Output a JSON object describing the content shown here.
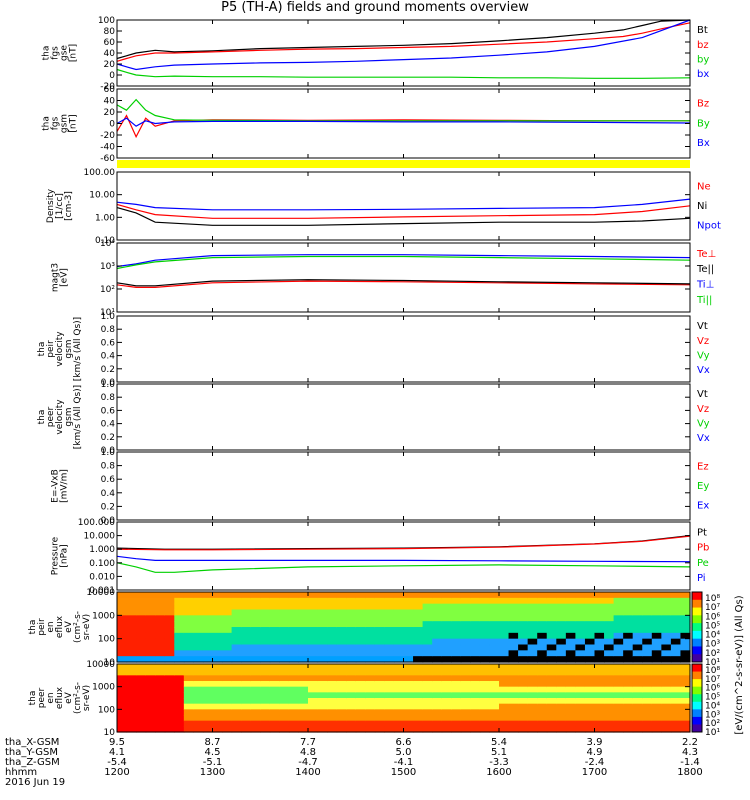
{
  "title": "P5 (TH-A) fields and ground moments overview",
  "colors": {
    "black": "#000000",
    "red": "#ff0000",
    "green": "#00d000",
    "blue": "#0000ff",
    "yellow": "#ffff00"
  },
  "chart_data": [
    {
      "id": "fgs_gse",
      "type": "line",
      "ylabel": [
        "tha",
        "fgs",
        "gse",
        "[nT]"
      ],
      "ytick_labels": [
        "100",
        "80",
        "60",
        "40",
        "20",
        "0",
        "-20"
      ],
      "ylim": [
        -20,
        100
      ],
      "series": [
        {
          "name": "Bt",
          "color": "#000000",
          "x": [
            1200,
            1210,
            1220,
            1240,
            1260,
            1300,
            1350,
            1400,
            1450,
            1500,
            1550,
            1600,
            1650,
            1700,
            1730,
            1750,
            1770,
            1800
          ],
          "values": [
            30,
            35,
            40,
            45,
            42,
            44,
            48,
            50,
            52,
            54,
            57,
            62,
            68,
            76,
            82,
            90,
            98,
            105
          ]
        },
        {
          "name": "bz",
          "color": "#ff0000",
          "x": [
            1200,
            1210,
            1220,
            1240,
            1260,
            1300,
            1350,
            1400,
            1450,
            1500,
            1550,
            1600,
            1650,
            1700,
            1730,
            1750,
            1770,
            1800
          ],
          "values": [
            25,
            30,
            35,
            40,
            40,
            42,
            45,
            47,
            48,
            50,
            52,
            56,
            60,
            66,
            70,
            76,
            84,
            95
          ]
        },
        {
          "name": "by",
          "color": "#00d000",
          "x": [
            1200,
            1210,
            1220,
            1240,
            1260,
            1300,
            1350,
            1400,
            1450,
            1500,
            1550,
            1600,
            1650,
            1700,
            1750,
            1800
          ],
          "values": [
            10,
            5,
            0,
            -3,
            -2,
            -3,
            -3,
            -4,
            -4,
            -4,
            -4,
            -5,
            -5,
            -6,
            -6,
            -5
          ]
        },
        {
          "name": "bx",
          "color": "#0000ff",
          "x": [
            1200,
            1210,
            1220,
            1240,
            1260,
            1300,
            1350,
            1400,
            1450,
            1500,
            1550,
            1600,
            1650,
            1700,
            1750,
            1800
          ],
          "values": [
            20,
            15,
            10,
            15,
            18,
            20,
            22,
            23,
            25,
            28,
            31,
            36,
            42,
            52,
            68,
            100
          ]
        }
      ],
      "legend": [
        "Bt",
        "bz",
        "by",
        "bx"
      ]
    },
    {
      "id": "fgs_gsm",
      "type": "line",
      "ylabel": [
        "tha",
        "fgs",
        "gsm",
        "[nT]"
      ],
      "ytick_labels": [
        "60",
        "40",
        "20",
        "0",
        "-20",
        "-40",
        "-60"
      ],
      "ylim": [
        -70,
        60
      ],
      "series": [
        {
          "name": "Bz",
          "color": "#ff0000",
          "x": [
            1200,
            1210,
            1220,
            1230,
            1240,
            1260,
            1300,
            1400,
            1500,
            1600,
            1700,
            1800
          ],
          "values": [
            -20,
            10,
            -30,
            5,
            -10,
            0,
            2,
            1,
            2,
            1,
            0,
            0
          ]
        },
        {
          "name": "By",
          "color": "#00d000",
          "x": [
            1200,
            1210,
            1220,
            1230,
            1240,
            1260,
            1300,
            1400,
            1500,
            1600,
            1700,
            1800
          ],
          "values": [
            30,
            20,
            40,
            20,
            10,
            2,
            1,
            0,
            0,
            0,
            0,
            0
          ]
        },
        {
          "name": "Bx",
          "color": "#0000ff",
          "x": [
            1200,
            1210,
            1220,
            1230,
            1240,
            1260,
            1300,
            1400,
            1500,
            1600,
            1700,
            1800
          ],
          "values": [
            -5,
            5,
            -10,
            0,
            -5,
            -2,
            -1,
            -1,
            -2,
            -2,
            -3,
            -4
          ]
        }
      ],
      "legend": [
        "Bz",
        "By",
        "Bx"
      ]
    },
    {
      "id": "density",
      "type": "line",
      "scale": "log",
      "ylabel": [
        "Density",
        "[1/cc]",
        "[cm-3]"
      ],
      "ytick_labels": [
        "100.00",
        "10.00",
        "1.00",
        "0.10"
      ],
      "ylim": [
        0.03,
        200
      ],
      "series": [
        {
          "name": "Ne",
          "color": "#ff0000",
          "x": [
            1200,
            1220,
            1240,
            1300,
            1400,
            1500,
            1600,
            1700,
            1750,
            1800
          ],
          "values": [
            3,
            1.5,
            0.8,
            0.5,
            0.5,
            0.6,
            0.7,
            0.8,
            1.2,
            2.5
          ]
        },
        {
          "name": "Ni",
          "color": "#000000",
          "x": [
            1200,
            1220,
            1240,
            1300,
            1400,
            1500,
            1600,
            1700,
            1750,
            1800
          ],
          "values": [
            2,
            1,
            0.3,
            0.2,
            0.2,
            0.25,
            0.3,
            0.3,
            0.35,
            0.5
          ]
        },
        {
          "name": "Npot",
          "color": "#0000ff",
          "x": [
            1200,
            1220,
            1240,
            1300,
            1400,
            1500,
            1600,
            1700,
            1750,
            1800
          ],
          "values": [
            4,
            3,
            2,
            1.5,
            1.5,
            1.6,
            1.8,
            2,
            3,
            6
          ]
        }
      ],
      "legend": [
        "Ne",
        "Ni",
        "Npot"
      ]
    },
    {
      "id": "temperature",
      "type": "line",
      "scale": "log",
      "ylabel": [
        "magt3",
        "[eV]"
      ],
      "ytick_labels": [
        "10⁴",
        "10³",
        "10²",
        "10¹"
      ],
      "ylim": [
        10,
        20000
      ],
      "series": [
        {
          "name": "Te⊥",
          "color": "#ff0000",
          "x": [
            1200,
            1220,
            1240,
            1300,
            1400,
            1500,
            1600,
            1700,
            1800
          ],
          "values": [
            200,
            150,
            150,
            250,
            300,
            280,
            250,
            220,
            200
          ]
        },
        {
          "name": "Te||",
          "color": "#000000",
          "x": [
            1200,
            1220,
            1240,
            1300,
            1400,
            1500,
            1600,
            1700,
            1800
          ],
          "values": [
            250,
            180,
            180,
            300,
            350,
            320,
            280,
            250,
            220
          ]
        },
        {
          "name": "Ti⊥",
          "color": "#0000ff",
          "x": [
            1200,
            1220,
            1240,
            1300,
            1400,
            1500,
            1600,
            1700,
            1800
          ],
          "values": [
            1500,
            2000,
            3000,
            5000,
            5500,
            5500,
            5000,
            4500,
            4000
          ]
        },
        {
          "name": "Ti||",
          "color": "#00d000",
          "x": [
            1200,
            1220,
            1240,
            1300,
            1400,
            1500,
            1600,
            1700,
            1800
          ],
          "values": [
            1200,
            1800,
            2500,
            4000,
            4500,
            4500,
            4000,
            3500,
            3000
          ]
        }
      ],
      "legend": [
        "Te⊥",
        "Te||",
        "Ti⊥",
        "Ti||"
      ]
    },
    {
      "id": "peir_velocity",
      "type": "line",
      "ylabel": [
        "tha",
        "peir",
        "velocity",
        "gsm",
        "[km/s (All Qs)]"
      ],
      "ytick_labels": [
        "1.0",
        "0.8",
        "0.6",
        "0.4",
        "0.2",
        "0.0"
      ],
      "ylim": [
        0,
        1
      ],
      "series": [],
      "legend": [
        "Vt",
        "Vz",
        "Vy",
        "Vx"
      ]
    },
    {
      "id": "peer_velocity",
      "type": "line",
      "ylabel": [
        "tha",
        "peer",
        "velocity",
        "gsm",
        "[km/s (All Qs)]"
      ],
      "ytick_labels": [
        "1.0",
        "0.8",
        "0.6",
        "0.4",
        "0.2",
        "0.0"
      ],
      "ylim": [
        0,
        1
      ],
      "series": [],
      "legend": [
        "Vt",
        "Vz",
        "Vy",
        "Vx"
      ]
    },
    {
      "id": "efield",
      "type": "line",
      "ylabel": [
        "E=-VxB",
        "[mV/m]"
      ],
      "ytick_labels": [
        "1.0",
        "0.8",
        "0.6",
        "0.4",
        "0.2",
        "0.0"
      ],
      "ylim": [
        0,
        1
      ],
      "series": [],
      "legend": [
        "Ez",
        "Ey",
        "Ex"
      ]
    },
    {
      "id": "pressure",
      "type": "line",
      "scale": "log",
      "ylabel": [
        "Pressure",
        "[nPa]"
      ],
      "ytick_labels": [
        "100.000",
        "10.000",
        "1.000",
        "0.100",
        "0.010",
        "0.001"
      ],
      "ylim": [
        0.001,
        100
      ],
      "series": [
        {
          "name": "Pt",
          "color": "#000000",
          "x": [
            1200,
            1250,
            1300,
            1400,
            1500,
            1600,
            1700,
            1750,
            1800
          ],
          "values": [
            1.2,
            1,
            1,
            1.1,
            1.2,
            1.5,
            2.5,
            4,
            10
          ]
        },
        {
          "name": "Pb",
          "color": "#ff0000",
          "x": [
            1200,
            1250,
            1300,
            1400,
            1500,
            1600,
            1700,
            1750,
            1800
          ],
          "values": [
            1,
            0.9,
            0.9,
            1,
            1.1,
            1.4,
            2.4,
            3.8,
            9
          ]
        },
        {
          "name": "Pe",
          "color": "#00d000",
          "x": [
            1200,
            1220,
            1240,
            1260,
            1300,
            1400,
            1500,
            1600,
            1700,
            1800
          ],
          "values": [
            0.1,
            0.05,
            0.02,
            0.02,
            0.03,
            0.05,
            0.06,
            0.07,
            0.06,
            0.05
          ]
        },
        {
          "name": "Pi",
          "color": "#0000ff",
          "x": [
            1200,
            1220,
            1240,
            1300,
            1400,
            1500,
            1600,
            1700,
            1800
          ],
          "values": [
            0.3,
            0.2,
            0.15,
            0.15,
            0.15,
            0.15,
            0.14,
            0.13,
            0.12
          ]
        }
      ],
      "legend": [
        "Pt",
        "Pb",
        "Pe",
        "Pi"
      ]
    },
    {
      "id": "peir_spectrogram",
      "type": "heatmap",
      "ylabel": [
        "tha",
        "peir",
        "en",
        "eflux",
        "eV",
        "(cm²-s-",
        "sr-eV)"
      ],
      "ytick_labels": [
        "10000",
        "1000",
        "100",
        "10"
      ],
      "zlabel": "[eV/(cm^2-s-sr-eV)] (All Qs)",
      "zticks": [
        "10⁸",
        "10⁷",
        "10⁶",
        "10⁵",
        "10⁴",
        "10³",
        "10²",
        "10¹"
      ]
    },
    {
      "id": "peer_spectrogram",
      "type": "heatmap",
      "ylabel": [
        "tha",
        "peer",
        "en",
        "eflux",
        "eV",
        "(cm²-s-",
        "sr-eV)"
      ],
      "ytick_labels": [
        "10000",
        "1000",
        "100",
        "10"
      ],
      "zlabel": "[eV/(cm^2-s-sr-eV)] (All Qs)",
      "zticks": [
        "10⁸",
        "10⁷",
        "10⁶",
        "10⁵",
        "10⁴",
        "10³",
        "10²",
        "10¹"
      ]
    }
  ],
  "footer": {
    "row_labels": [
      "tha_X-GSM",
      "tha_Y-GSM",
      "tha_Z-GSM",
      "hhmm",
      "2016 Jun 19"
    ],
    "columns": [
      {
        "x": "9.5",
        "y": "4.1",
        "z": "-5.4",
        "hhmm": "1200"
      },
      {
        "x": "8.7",
        "y": "4.5",
        "z": "-5.1",
        "hhmm": "1300"
      },
      {
        "x": "7.7",
        "y": "4.8",
        "z": "-4.7",
        "hhmm": "1400"
      },
      {
        "x": "6.6",
        "y": "5.0",
        "z": "-4.1",
        "hhmm": "1500"
      },
      {
        "x": "5.4",
        "y": "5.1",
        "z": "-3.3",
        "hhmm": "1600"
      },
      {
        "x": "3.9",
        "y": "4.9",
        "z": "-2.4",
        "hhmm": "1700"
      },
      {
        "x": "2.2",
        "y": "4.3",
        "z": "-1.4",
        "hhmm": "1800"
      }
    ]
  }
}
